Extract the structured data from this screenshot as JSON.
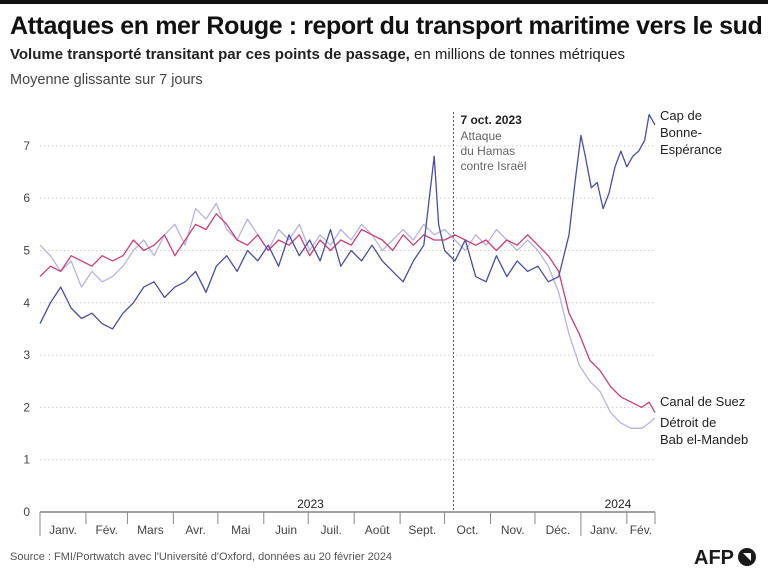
{
  "title": "Attaques en mer Rouge : report du transport maritime vers le sud",
  "subtitle_bold": "Volume transporté transitant par ces points de passage,",
  "subtitle_rest": " en millions de tonnes métriques",
  "note": "Moyenne glissante sur 7 jours",
  "source": "Source : FMI/Portwatch avec l'Université d'Oxford, données au 20 février 2024",
  "logo": "AFP",
  "colors": {
    "cape": "#4a4f9e",
    "suez": "#cc3f73",
    "bab": "#b8b4e0",
    "grid": "#cccccc",
    "axis": "#444444"
  },
  "chart_data": {
    "type": "line",
    "y_range": [
      0,
      7.8
    ],
    "y_ticks": [
      0,
      1,
      2,
      3,
      4,
      5,
      6,
      7
    ],
    "x_range": [
      "2023-01-01",
      "2024-02-20"
    ],
    "months": [
      "Janv.",
      "Fév.",
      "Mars",
      "Avr.",
      "Mai",
      "Juin",
      "Juil.",
      "Août",
      "Sept.",
      "Oct.",
      "Nov.",
      "Déc.",
      "Janv.",
      "Fév."
    ],
    "years": [
      "2023",
      "2024"
    ],
    "event": {
      "date": "2023-10-07",
      "title": "7 oct. 2023",
      "lines": [
        "Attaque",
        "du Hamas",
        "contre Israël"
      ]
    },
    "series": [
      {
        "name": "Cap de Bonne-Espérance",
        "label_lines": [
          "Cap de",
          "Bonne-",
          "Espérance"
        ],
        "points": [
          [
            "2023-01-01",
            3.6
          ],
          [
            "2023-01-08",
            4.0
          ],
          [
            "2023-01-15",
            4.3
          ],
          [
            "2023-01-22",
            3.9
          ],
          [
            "2023-01-29",
            3.7
          ],
          [
            "2023-02-05",
            3.8
          ],
          [
            "2023-02-12",
            3.6
          ],
          [
            "2023-02-19",
            3.5
          ],
          [
            "2023-02-26",
            3.8
          ],
          [
            "2023-03-05",
            4.0
          ],
          [
            "2023-03-12",
            4.3
          ],
          [
            "2023-03-19",
            4.4
          ],
          [
            "2023-03-26",
            4.1
          ],
          [
            "2023-04-02",
            4.3
          ],
          [
            "2023-04-09",
            4.4
          ],
          [
            "2023-04-16",
            4.6
          ],
          [
            "2023-04-23",
            4.2
          ],
          [
            "2023-04-30",
            4.7
          ],
          [
            "2023-05-07",
            4.9
          ],
          [
            "2023-05-14",
            4.6
          ],
          [
            "2023-05-21",
            5.0
          ],
          [
            "2023-05-28",
            4.8
          ],
          [
            "2023-06-04",
            5.1
          ],
          [
            "2023-06-11",
            4.7
          ],
          [
            "2023-06-18",
            5.3
          ],
          [
            "2023-06-25",
            4.9
          ],
          [
            "2023-07-02",
            5.2
          ],
          [
            "2023-07-09",
            4.8
          ],
          [
            "2023-07-16",
            5.4
          ],
          [
            "2023-07-23",
            4.7
          ],
          [
            "2023-07-30",
            5.0
          ],
          [
            "2023-08-06",
            4.8
          ],
          [
            "2023-08-13",
            5.1
          ],
          [
            "2023-08-20",
            4.8
          ],
          [
            "2023-08-27",
            4.6
          ],
          [
            "2023-09-03",
            4.4
          ],
          [
            "2023-09-10",
            4.8
          ],
          [
            "2023-09-17",
            5.1
          ],
          [
            "2023-09-24",
            6.8
          ],
          [
            "2023-09-27",
            5.5
          ],
          [
            "2023-10-01",
            5.0
          ],
          [
            "2023-10-08",
            4.8
          ],
          [
            "2023-10-15",
            5.2
          ],
          [
            "2023-10-22",
            4.5
          ],
          [
            "2023-10-29",
            4.4
          ],
          [
            "2023-11-05",
            4.9
          ],
          [
            "2023-11-12",
            4.5
          ],
          [
            "2023-11-19",
            4.8
          ],
          [
            "2023-11-26",
            4.6
          ],
          [
            "2023-12-03",
            4.7
          ],
          [
            "2023-12-10",
            4.4
          ],
          [
            "2023-12-17",
            4.5
          ],
          [
            "2023-12-24",
            5.3
          ],
          [
            "2023-12-28",
            6.3
          ],
          [
            "2024-01-01",
            7.2
          ],
          [
            "2024-01-04",
            6.8
          ],
          [
            "2024-01-08",
            6.2
          ],
          [
            "2024-01-12",
            6.3
          ],
          [
            "2024-01-16",
            5.8
          ],
          [
            "2024-01-20",
            6.1
          ],
          [
            "2024-01-24",
            6.6
          ],
          [
            "2024-01-28",
            6.9
          ],
          [
            "2024-02-01",
            6.6
          ],
          [
            "2024-02-05",
            6.8
          ],
          [
            "2024-02-09",
            6.9
          ],
          [
            "2024-02-13",
            7.1
          ],
          [
            "2024-02-16",
            7.6
          ],
          [
            "2024-02-20",
            7.4
          ]
        ]
      },
      {
        "name": "Canal de Suez",
        "label_lines": [
          "Canal de Suez"
        ],
        "points": [
          [
            "2023-01-01",
            4.5
          ],
          [
            "2023-01-08",
            4.7
          ],
          [
            "2023-01-15",
            4.6
          ],
          [
            "2023-01-22",
            4.9
          ],
          [
            "2023-01-29",
            4.8
          ],
          [
            "2023-02-05",
            4.7
          ],
          [
            "2023-02-12",
            4.9
          ],
          [
            "2023-02-19",
            4.8
          ],
          [
            "2023-02-26",
            4.9
          ],
          [
            "2023-03-05",
            5.2
          ],
          [
            "2023-03-12",
            5.0
          ],
          [
            "2023-03-19",
            5.1
          ],
          [
            "2023-03-26",
            5.3
          ],
          [
            "2023-04-02",
            4.9
          ],
          [
            "2023-04-09",
            5.2
          ],
          [
            "2023-04-16",
            5.5
          ],
          [
            "2023-04-23",
            5.4
          ],
          [
            "2023-04-30",
            5.7
          ],
          [
            "2023-05-07",
            5.5
          ],
          [
            "2023-05-14",
            5.2
          ],
          [
            "2023-05-21",
            5.1
          ],
          [
            "2023-05-28",
            5.3
          ],
          [
            "2023-06-04",
            5.0
          ],
          [
            "2023-06-11",
            5.2
          ],
          [
            "2023-06-18",
            5.1
          ],
          [
            "2023-06-25",
            5.3
          ],
          [
            "2023-07-02",
            4.9
          ],
          [
            "2023-07-09",
            5.2
          ],
          [
            "2023-07-16",
            5.0
          ],
          [
            "2023-07-23",
            5.2
          ],
          [
            "2023-07-30",
            5.1
          ],
          [
            "2023-08-06",
            5.4
          ],
          [
            "2023-08-13",
            5.3
          ],
          [
            "2023-08-20",
            5.2
          ],
          [
            "2023-08-27",
            5.0
          ],
          [
            "2023-09-03",
            5.3
          ],
          [
            "2023-09-10",
            5.1
          ],
          [
            "2023-09-17",
            5.3
          ],
          [
            "2023-09-24",
            5.2
          ],
          [
            "2023-10-01",
            5.2
          ],
          [
            "2023-10-08",
            5.3
          ],
          [
            "2023-10-15",
            5.2
          ],
          [
            "2023-10-22",
            5.1
          ],
          [
            "2023-10-29",
            5.2
          ],
          [
            "2023-11-05",
            5.0
          ],
          [
            "2023-11-12",
            5.2
          ],
          [
            "2023-11-19",
            5.1
          ],
          [
            "2023-11-26",
            5.3
          ],
          [
            "2023-12-03",
            5.1
          ],
          [
            "2023-12-10",
            4.9
          ],
          [
            "2023-12-17",
            4.6
          ],
          [
            "2023-12-24",
            3.8
          ],
          [
            "2023-12-31",
            3.4
          ],
          [
            "2024-01-07",
            2.9
          ],
          [
            "2024-01-14",
            2.7
          ],
          [
            "2024-01-21",
            2.4
          ],
          [
            "2024-01-28",
            2.2
          ],
          [
            "2024-02-04",
            2.1
          ],
          [
            "2024-02-11",
            2.0
          ],
          [
            "2024-02-16",
            2.1
          ],
          [
            "2024-02-20",
            1.9
          ]
        ]
      },
      {
        "name": "Détroit de Bab el-Mandeb",
        "label_lines": [
          "Détroit de",
          "Bab el-Mandeb"
        ],
        "points": [
          [
            "2023-01-01",
            5.1
          ],
          [
            "2023-01-08",
            4.9
          ],
          [
            "2023-01-15",
            4.6
          ],
          [
            "2023-01-22",
            4.8
          ],
          [
            "2023-01-29",
            4.3
          ],
          [
            "2023-02-05",
            4.6
          ],
          [
            "2023-02-12",
            4.4
          ],
          [
            "2023-02-19",
            4.5
          ],
          [
            "2023-02-26",
            4.7
          ],
          [
            "2023-03-05",
            5.0
          ],
          [
            "2023-03-12",
            5.2
          ],
          [
            "2023-03-19",
            4.9
          ],
          [
            "2023-03-26",
            5.3
          ],
          [
            "2023-04-02",
            5.5
          ],
          [
            "2023-04-09",
            5.1
          ],
          [
            "2023-04-16",
            5.8
          ],
          [
            "2023-04-23",
            5.6
          ],
          [
            "2023-04-30",
            5.9
          ],
          [
            "2023-05-07",
            5.4
          ],
          [
            "2023-05-14",
            5.2
          ],
          [
            "2023-05-21",
            5.6
          ],
          [
            "2023-05-28",
            5.3
          ],
          [
            "2023-06-04",
            5.0
          ],
          [
            "2023-06-11",
            5.4
          ],
          [
            "2023-06-18",
            5.2
          ],
          [
            "2023-06-25",
            5.5
          ],
          [
            "2023-07-02",
            5.0
          ],
          [
            "2023-07-09",
            5.3
          ],
          [
            "2023-07-16",
            5.1
          ],
          [
            "2023-07-23",
            5.4
          ],
          [
            "2023-07-30",
            5.2
          ],
          [
            "2023-08-06",
            5.5
          ],
          [
            "2023-08-13",
            5.3
          ],
          [
            "2023-08-20",
            5.0
          ],
          [
            "2023-08-27",
            5.2
          ],
          [
            "2023-09-03",
            5.4
          ],
          [
            "2023-09-10",
            5.2
          ],
          [
            "2023-09-17",
            5.5
          ],
          [
            "2023-09-24",
            5.3
          ],
          [
            "2023-10-01",
            5.4
          ],
          [
            "2023-10-08",
            5.2
          ],
          [
            "2023-10-15",
            5.0
          ],
          [
            "2023-10-22",
            5.3
          ],
          [
            "2023-10-29",
            5.1
          ],
          [
            "2023-11-05",
            5.4
          ],
          [
            "2023-11-12",
            5.2
          ],
          [
            "2023-11-19",
            5.0
          ],
          [
            "2023-11-26",
            5.2
          ],
          [
            "2023-12-03",
            5.0
          ],
          [
            "2023-12-10",
            4.7
          ],
          [
            "2023-12-17",
            4.2
          ],
          [
            "2023-12-24",
            3.4
          ],
          [
            "2023-12-31",
            2.8
          ],
          [
            "2024-01-07",
            2.5
          ],
          [
            "2024-01-14",
            2.3
          ],
          [
            "2024-01-21",
            1.9
          ],
          [
            "2024-01-28",
            1.7
          ],
          [
            "2024-02-04",
            1.6
          ],
          [
            "2024-02-11",
            1.6
          ],
          [
            "2024-02-16",
            1.7
          ],
          [
            "2024-02-20",
            1.8
          ]
        ]
      }
    ]
  }
}
